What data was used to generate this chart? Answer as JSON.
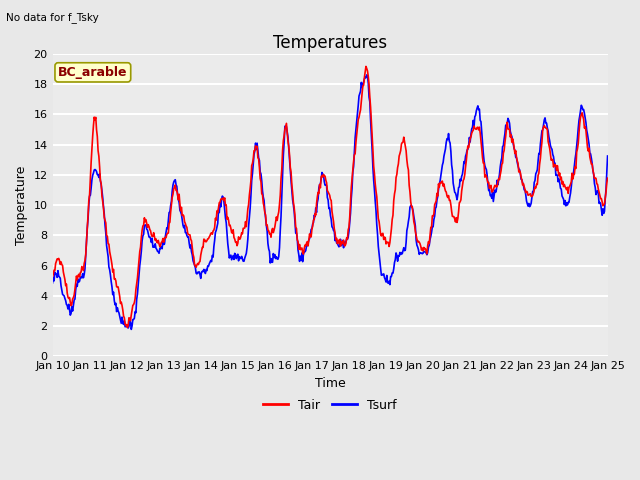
{
  "title": "Temperatures",
  "subtitle": "No data for f_Tsky",
  "xlabel": "Time",
  "ylabel": "Temperature",
  "legend_label": "BC_arable",
  "tair_label": "Tair",
  "tsurf_label": "Tsurf",
  "ylim": [
    0,
    20
  ],
  "yticks": [
    0,
    2,
    4,
    6,
    8,
    10,
    12,
    14,
    16,
    18,
    20
  ],
  "xtick_labels": [
    "Jan 10",
    "Jan 11",
    "Jan 12",
    "Jan 13",
    "Jan 14",
    "Jan 15",
    "Jan 16",
    "Jan 17",
    "Jan 18",
    "Jan 19",
    "Jan 20",
    "Jan 21",
    "Jan 22",
    "Jan 23",
    "Jan 24",
    "Jan 25"
  ],
  "bg_color": "#e8e8e8",
  "plot_bg_color": "#ebebeb",
  "tair_color": "red",
  "tsurf_color": "blue",
  "grid_color": "white",
  "legend_bg": "#ffffcc",
  "legend_border": "#999900",
  "legend_text_color": "#8b0000",
  "title_fontsize": 12,
  "label_fontsize": 9,
  "tick_fontsize": 8,
  "line_width": 1.2,
  "n_days": 15,
  "pts_per_day": 48
}
